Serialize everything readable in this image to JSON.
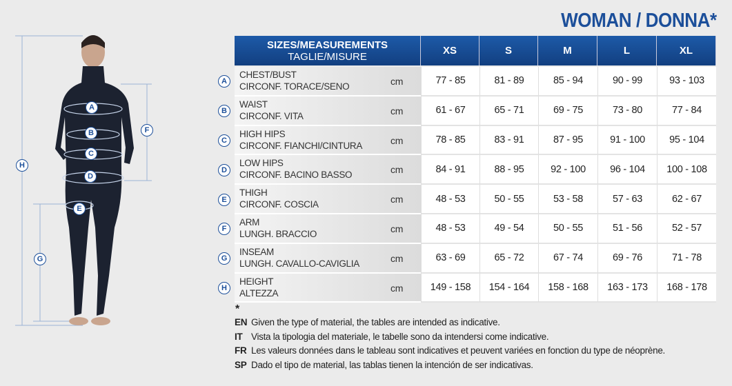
{
  "title": "WOMAN / DONNA*",
  "table": {
    "header": [
      "SIZES/MEASUREMENTS",
      "TAGLIE/MISURE"
    ],
    "sizes": [
      "XS",
      "S",
      "M",
      "L",
      "XL"
    ],
    "rows": [
      {
        "letter": "A",
        "en": "CHEST/BUST",
        "it": "CIRCONF. TORACE/SENO",
        "unit": "cm",
        "values": [
          "77 - 85",
          "81 - 89",
          "85 - 94",
          "90 - 99",
          "93 - 103"
        ]
      },
      {
        "letter": "B",
        "en": "WAIST",
        "it": "CIRCONF. VITA",
        "unit": "cm",
        "values": [
          "61 - 67",
          "65 - 71",
          "69 - 75",
          "73 - 80",
          "77 - 84"
        ]
      },
      {
        "letter": "C",
        "en": "HIGH HIPS",
        "it": "CIRCONF. FIANCHI/CINTURA",
        "unit": "cm",
        "values": [
          "78 - 85",
          "83 - 91",
          "87 - 95",
          "91 - 100",
          "95 - 104"
        ]
      },
      {
        "letter": "D",
        "en": "LOW HIPS",
        "it": "CIRCONF. BACINO BASSO",
        "unit": "cm",
        "values": [
          "84 - 91",
          "88 - 95",
          "92 - 100",
          "96 - 104",
          "100 - 108"
        ]
      },
      {
        "letter": "E",
        "en": "THIGH",
        "it": "CIRCONF. COSCIA",
        "unit": "cm",
        "values": [
          "48 - 53",
          "50 - 55",
          "53 - 58",
          "57 - 63",
          "62 - 67"
        ]
      },
      {
        "letter": "F",
        "en": "ARM",
        "it": "LUNGH. BRACCIO",
        "unit": "cm",
        "values": [
          "48 - 53",
          "49 - 54",
          "50 - 55",
          "51 - 56",
          "52 - 57"
        ]
      },
      {
        "letter": "G",
        "en": "INSEAM",
        "it": "LUNGH. CAVALLO-CAVIGLIA",
        "unit": "cm",
        "values": [
          "63 - 69",
          "65 - 72",
          "67 - 74",
          "69 - 76",
          "71 - 78"
        ]
      },
      {
        "letter": "H",
        "en": "HEIGHT",
        "it": "ALTEZZA",
        "unit": "cm",
        "values": [
          "149 - 158",
          "154 - 164",
          "158 - 168",
          "163 - 173",
          "168 - 178"
        ]
      }
    ]
  },
  "footnote": {
    "marker": "*",
    "notes": [
      {
        "lang": "EN",
        "text": "Given the type of material, the tables are intended as indicative."
      },
      {
        "lang": "IT",
        "text": "Vista la tipologia del materiale, le tabelle sono da intendersi come indicative."
      },
      {
        "lang": "FR",
        "text": "Les valeurs données dans le tableau sont indicatives et peuvent variées en fonction du type de néoprène."
      },
      {
        "lang": "SP",
        "text": "Dado el tipo de material, las tablas tienen la intención de ser indicativas."
      }
    ]
  },
  "figure": {
    "labels": [
      "A",
      "B",
      "C",
      "D",
      "E",
      "F",
      "G",
      "H"
    ]
  }
}
